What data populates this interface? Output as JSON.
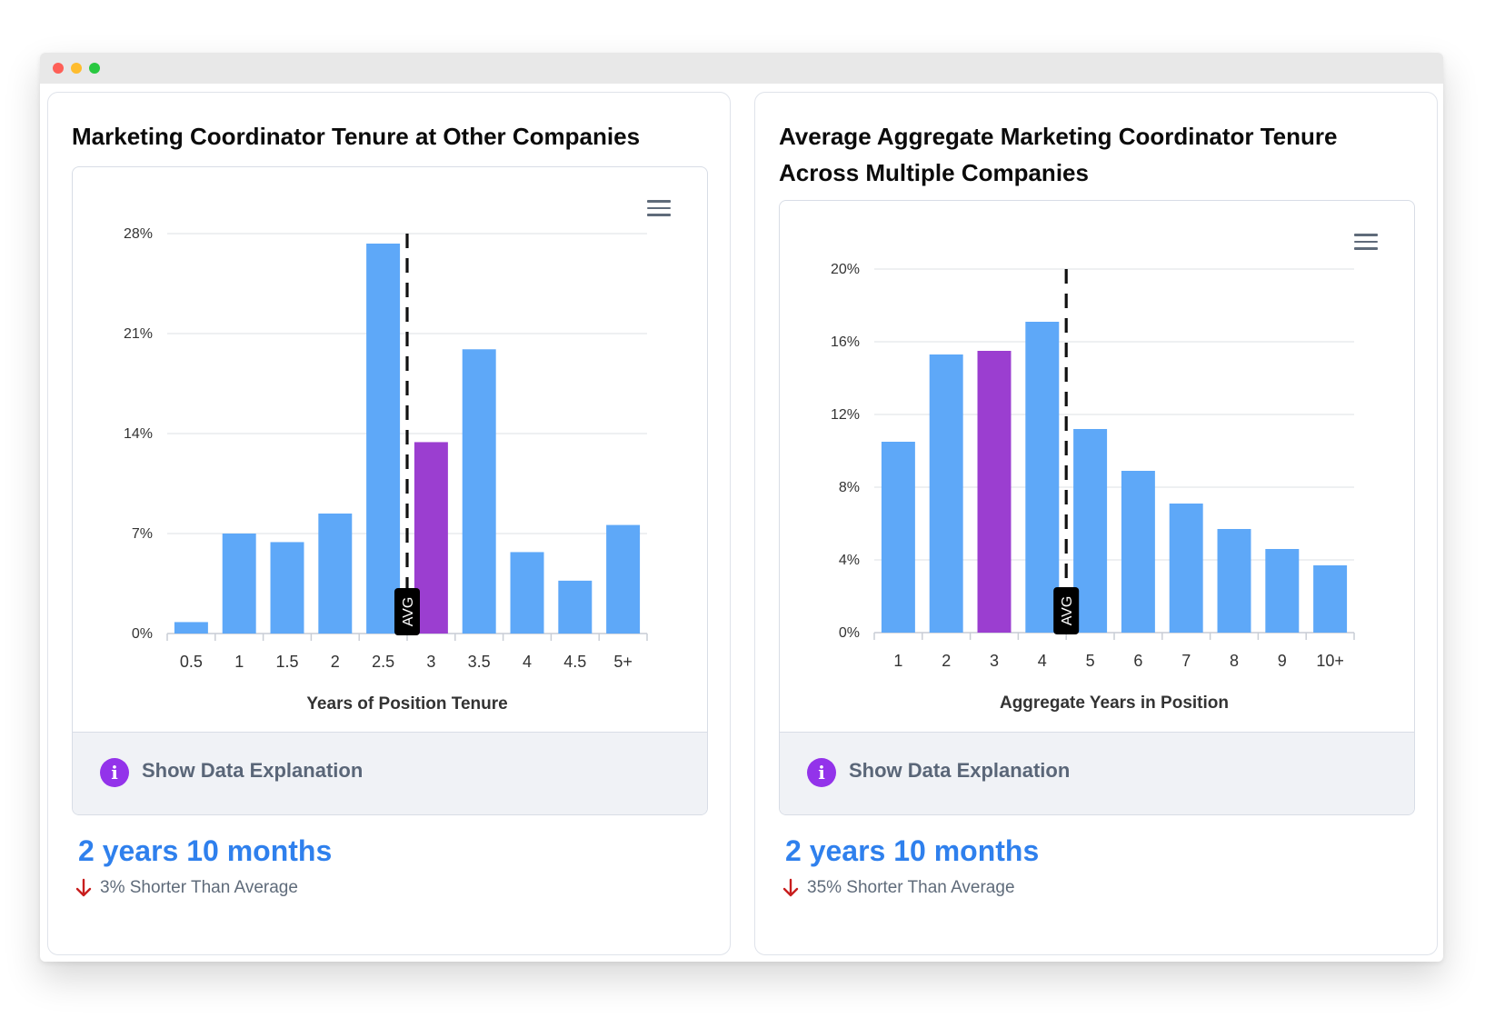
{
  "window": {
    "controls": [
      "close",
      "minimize",
      "maximize"
    ]
  },
  "colors": {
    "bar": "#5ea8f8",
    "highlight": "#9b3ed0",
    "avg_line": "#111111",
    "stat": "#2f80ed",
    "down_arrow": "#c81e1e"
  },
  "left_card": {
    "title": "Marketing Coordinator Tenure at Other Companies",
    "menu_icon": "hamburger-menu-icon",
    "explanation_label": "Show Data Explanation",
    "info_icon": "i",
    "stat_value": "2 years 10 months",
    "stat_sub": "3% Shorter Than Average"
  },
  "right_card": {
    "title": "Average Aggregate Marketing Coordinator Tenure Across Multiple Companies",
    "menu_icon": "hamburger-menu-icon",
    "explanation_label": "Show Data Explanation",
    "info_icon": "i",
    "stat_value": "2 years 10 months",
    "stat_sub": "35% Shorter Than Average"
  },
  "chart_data": [
    {
      "type": "bar",
      "title": "Marketing Coordinator Tenure at Other Companies",
      "xlabel": "Years of Position Tenure",
      "ylabel": "",
      "categories": [
        "0.5",
        "1",
        "1.5",
        "2",
        "2.5",
        "3",
        "3.5",
        "4",
        "4.5",
        "5+"
      ],
      "values": [
        0.8,
        7.0,
        6.4,
        8.4,
        27.3,
        13.4,
        19.9,
        5.7,
        3.7,
        7.6
      ],
      "highlight_index": 5,
      "avg_marker": {
        "label": "AVG",
        "position": 5
      },
      "yticks": [
        "0%",
        "7%",
        "14%",
        "21%",
        "28%"
      ],
      "ylim": [
        0,
        28
      ],
      "grid": true,
      "legend": "none"
    },
    {
      "type": "bar",
      "title": "Average Aggregate Marketing Coordinator Tenure Across Multiple Companies",
      "xlabel": "Aggregate Years in Position",
      "ylabel": "",
      "categories": [
        "1",
        "2",
        "3",
        "4",
        "5",
        "6",
        "7",
        "8",
        "9",
        "10+"
      ],
      "values": [
        10.5,
        15.3,
        15.5,
        17.1,
        11.2,
        8.9,
        7.1,
        5.7,
        4.6,
        3.7
      ],
      "highlight_index": 2,
      "avg_marker": {
        "label": "AVG",
        "position": 4
      },
      "yticks": [
        "0%",
        "4%",
        "8%",
        "12%",
        "16%",
        "20%"
      ],
      "ylim": [
        0,
        20
      ],
      "grid": true,
      "legend": "none"
    }
  ]
}
